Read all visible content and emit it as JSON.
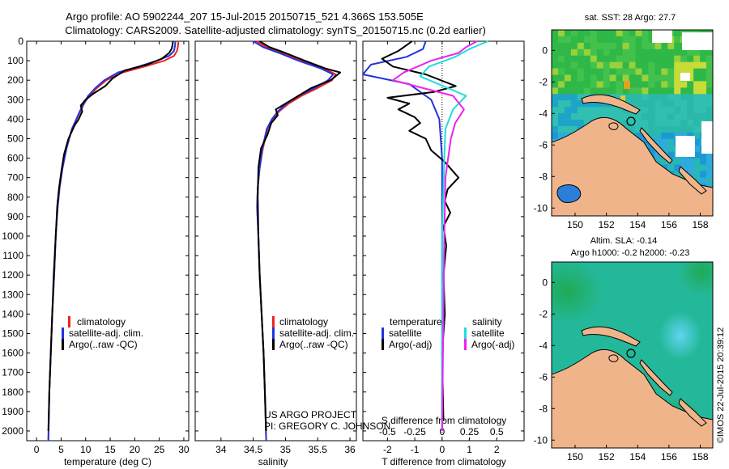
{
  "title_line1": "Argo profile: AO 5902244_207 15-Jul-2015 20150715_521 4.366S 153.505E",
  "title_line2": "Climatology: CARS2009. Satellite-adjusted climatology: synTS_20150715.nc (0.2d earlier)",
  "credit_line1": "US ARGO PROJECT",
  "credit_line2": "PI: GREGORY C. JOHNSON",
  "side_stamp": "©IMOS 22-Jul-2015 20:39:12",
  "colors": {
    "climatology": "#ee2222",
    "satellite": "#2233dd",
    "argo": "#000000",
    "sat_salinity": "#22dddd",
    "argo_salinity": "#ee22ee",
    "land": "#f0b48a",
    "ocean_mid": "#2ec0a0"
  },
  "chart_data": [
    {
      "type": "line",
      "panel": "temperature",
      "xlabel": "temperature (deg C)",
      "ylabel": "",
      "xlim": [
        -2,
        31
      ],
      "ylim": [
        2050,
        0
      ],
      "xticks": [
        0,
        5,
        10,
        15,
        20,
        25,
        30
      ],
      "yticks": [
        0,
        100,
        200,
        300,
        400,
        500,
        600,
        700,
        800,
        900,
        1000,
        1100,
        1200,
        1300,
        1400,
        1500,
        1600,
        1700,
        1800,
        1900,
        2000
      ],
      "legend": [
        "climatology",
        "satellite-adj. clim.",
        "Argo(..raw -QC)"
      ],
      "series": [
        {
          "name": "climatology",
          "color": "#ee2222",
          "x": [
            28.9,
            28.8,
            28.6,
            28.0,
            26.0,
            22.0,
            17.5,
            14.2,
            12.3,
            10.7,
            9.7,
            8.9,
            7.2,
            6.1,
            5.3,
            4.7,
            4.3,
            3.9,
            3.6,
            3.2,
            2.9,
            2.6,
            2.4
          ],
          "y": [
            0,
            25,
            50,
            75,
            100,
            130,
            160,
            200,
            240,
            280,
            320,
            360,
            450,
            550,
            650,
            750,
            850,
            1000,
            1200,
            1400,
            1600,
            1800,
            2050
          ]
        },
        {
          "name": "satellite-adj. clim.",
          "color": "#2233dd",
          "x": [
            28.3,
            28.2,
            28.0,
            27.0,
            24.5,
            20.8,
            16.6,
            13.8,
            12.0,
            10.5,
            9.6,
            8.8,
            7.2,
            6.1,
            5.3,
            4.7,
            4.3,
            3.9,
            3.6,
            3.2,
            2.9,
            2.6,
            2.4
          ],
          "y": [
            0,
            25,
            50,
            75,
            100,
            130,
            160,
            200,
            240,
            280,
            320,
            360,
            450,
            550,
            650,
            750,
            850,
            1000,
            1200,
            1400,
            1600,
            1800,
            2050
          ]
        },
        {
          "name": "Argo(..raw -QC)",
          "color": "#000000",
          "x": [
            27.8,
            27.7,
            27.5,
            27.0,
            25.5,
            22.5,
            18.0,
            15.5,
            14.0,
            11.5,
            10.0,
            9.0,
            9.3,
            8.6,
            7.8,
            6.5,
            5.6,
            5.1,
            4.6,
            4.2,
            3.9,
            3.5,
            3.2,
            2.9,
            2.6,
            2.4
          ],
          "y": [
            0,
            20,
            40,
            60,
            90,
            120,
            150,
            190,
            230,
            270,
            300,
            330,
            360,
            400,
            430,
            500,
            580,
            660,
            750,
            850,
            1000,
            1200,
            1400,
            1600,
            1800,
            2000
          ]
        }
      ]
    },
    {
      "type": "line",
      "panel": "salinity",
      "xlabel": "salinity",
      "xlim": [
        33.6,
        36.1
      ],
      "ylim": [
        2050,
        0
      ],
      "xticks": [
        34,
        34.5,
        35,
        35.5,
        36
      ],
      "legend": [
        "climatology",
        "satellite-adj. clim.",
        "Argo(..raw -QC)"
      ],
      "series": [
        {
          "name": "climatology",
          "color": "#ee2222",
          "x": [
            34.55,
            34.7,
            34.95,
            35.25,
            35.6,
            35.78,
            35.72,
            35.5,
            35.25,
            35.05,
            34.9,
            34.8,
            34.72,
            34.65,
            34.6,
            34.57,
            34.56,
            34.58,
            34.6,
            34.63,
            34.66,
            34.68,
            34.7
          ],
          "y": [
            0,
            30,
            60,
            100,
            140,
            170,
            200,
            240,
            280,
            320,
            360,
            400,
            450,
            550,
            650,
            750,
            850,
            1000,
            1200,
            1400,
            1600,
            1800,
            2050
          ]
        },
        {
          "name": "satellite-adj. clim.",
          "color": "#2233dd",
          "x": [
            34.5,
            34.65,
            34.9,
            35.2,
            35.55,
            35.74,
            35.66,
            35.45,
            35.2,
            35.02,
            34.88,
            34.79,
            34.71,
            34.64,
            34.6,
            34.57,
            34.56,
            34.58,
            34.6,
            34.63,
            34.66,
            34.68,
            34.7
          ],
          "y": [
            0,
            30,
            60,
            100,
            140,
            170,
            200,
            240,
            280,
            320,
            360,
            400,
            450,
            550,
            650,
            750,
            850,
            1000,
            1200,
            1400,
            1600,
            1800,
            2050
          ]
        },
        {
          "name": "Argo(..raw -QC)",
          "color": "#000000",
          "x": [
            34.6,
            34.75,
            35.0,
            35.3,
            35.62,
            35.85,
            35.7,
            35.4,
            35.2,
            35.0,
            34.85,
            34.88,
            34.78,
            34.72,
            34.62,
            34.58,
            34.57,
            34.58,
            34.6,
            34.63,
            34.66,
            34.68,
            34.7
          ],
          "y": [
            0,
            30,
            60,
            100,
            140,
            160,
            200,
            240,
            280,
            320,
            350,
            380,
            420,
            480,
            550,
            650,
            800,
            1000,
            1200,
            1400,
            1600,
            1800,
            2000
          ]
        }
      ]
    },
    {
      "type": "line",
      "panel": "difference",
      "xlabel": "T difference from climatology",
      "xlabel_top": "S difference from climatology",
      "xlim": [
        -2.9,
        3.0
      ],
      "ylim": [
        2050,
        0
      ],
      "xticks": [
        -2,
        -1,
        0,
        1,
        2
      ],
      "xticks_top": [
        -0.5,
        -0.25,
        0,
        0.25,
        0.5
      ],
      "legend_temperature": [
        "temperature",
        "satellite",
        "Argo(-adj)"
      ],
      "legend_salinity": [
        "salinity",
        "satellite",
        "Argo(-adj)"
      ],
      "series": [
        {
          "name": "temperature satellite",
          "color": "#2233dd",
          "x": [
            -0.6,
            -0.7,
            -1.3,
            -2.6,
            -2.9,
            -1.2,
            -0.4,
            -0.1,
            0.0,
            0.0,
            0.0
          ],
          "y": [
            0,
            40,
            80,
            120,
            170,
            220,
            300,
            400,
            600,
            1000,
            2000
          ]
        },
        {
          "name": "temperature Argo(-adj)",
          "color": "#000000",
          "x": [
            -1.1,
            -1.3,
            -1.6,
            -2.2,
            -1.8,
            -0.6,
            0.5,
            -0.3,
            -2.0,
            -1.2,
            -1.6,
            -1.0,
            -0.8,
            -1.2,
            -0.6,
            -0.4,
            0.1,
            0.6,
            0.2,
            0.1,
            0.3,
            0.05,
            0.15,
            0.05,
            0.1,
            0.0,
            0.05
          ],
          "y": [
            0,
            20,
            50,
            90,
            130,
            170,
            230,
            260,
            290,
            320,
            350,
            390,
            420,
            460,
            500,
            560,
            620,
            700,
            760,
            820,
            880,
            950,
            1050,
            1200,
            1400,
            1600,
            1950
          ]
        },
        {
          "name": "salinity satellite",
          "color": "#22dddd",
          "x": [
            0.42,
            0.25,
            0.12,
            -0.12,
            -0.2,
            0.05,
            0.22,
            0.1,
            0.03,
            0.02,
            0.0,
            0.0
          ],
          "y": [
            0,
            40,
            80,
            130,
            180,
            240,
            280,
            350,
            450,
            600,
            1000,
            2000
          ]
        },
        {
          "name": "salinity Argo(-adj)",
          "color": "#ee22ee",
          "x": [
            0.32,
            0.22,
            0.15,
            -0.1,
            -0.35,
            -0.45,
            0.1,
            0.2,
            0.12,
            0.08,
            0.03,
            0.02,
            0.0
          ],
          "y": [
            0,
            30,
            60,
            100,
            160,
            200,
            280,
            350,
            420,
            500,
            700,
            1000,
            2000
          ]
        }
      ]
    },
    {
      "type": "heatmap",
      "panel": "sst_map",
      "title": "sat. SST: 28 Argo: 27.7",
      "xlim": [
        148.5,
        158.8
      ],
      "ylim": [
        -10.5,
        1.3
      ],
      "xticks": [
        150,
        152,
        154,
        156,
        158
      ],
      "yticks": [
        0,
        -2,
        -4,
        -6,
        -8,
        -10
      ],
      "marker": {
        "lon": 153.505,
        "lat": -4.366
      }
    },
    {
      "type": "heatmap",
      "panel": "sla_map",
      "title_line1": "Altim. SLA: -0.14",
      "title_line2": "Argo h1000: -0.2 h2000: -0.23",
      "xlim": [
        148.5,
        158.8
      ],
      "ylim": [
        -10.5,
        1.3
      ],
      "xticks": [
        150,
        152,
        154,
        156,
        158
      ],
      "yticks": [
        0,
        -2,
        -4,
        -6,
        -8,
        -10
      ],
      "marker": {
        "lon": 153.505,
        "lat": -4.366
      }
    }
  ]
}
